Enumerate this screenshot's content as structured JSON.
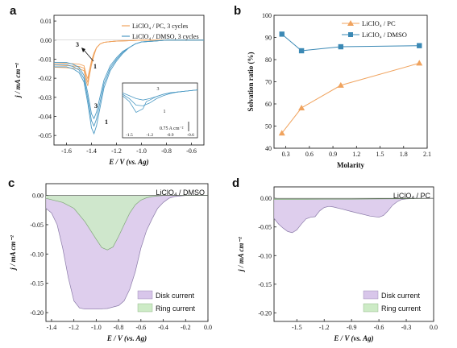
{
  "chart_data": [
    {
      "panel": "a",
      "type": "line",
      "xlabel": "E / V (vs. Ag)",
      "ylabel": "j / mA cm⁻²",
      "xlim": [
        -1.7,
        -0.5
      ],
      "ylim": [
        -0.055,
        0.013
      ],
      "xticks": [
        "-1.6",
        "-1.4",
        "-1.2",
        "-1.0",
        "-0.8",
        "-0.6"
      ],
      "yticks": [
        "0.01",
        "0.00",
        "-0.01",
        "-0.02",
        "-0.03",
        "-0.04",
        "-0.05"
      ],
      "colors": {
        "pc": "#f0a35e",
        "dmso": "#4c9ac4"
      },
      "legend": {
        "position": "top-right",
        "pc_label": "LiClO₄ / PC, 3 cycles",
        "dmso_label": "LiClO₄ / DMSO, 3 cycles"
      },
      "annotations": {
        "arrow_start": "3",
        "arrow_end": "1",
        "peak_top": "3",
        "peak_bottom": "1"
      },
      "series": [
        {
          "name": "LiClO₄ / PC, 3 cycles",
          "color": "#f0a35e",
          "x": [
            -0.5,
            -0.8,
            -1.0,
            -1.1,
            -1.2,
            -1.25,
            -1.3,
            -1.33,
            -1.36,
            -1.38,
            -1.4,
            -1.42,
            -1.43,
            -1.44,
            -1.46,
            -1.5,
            -1.6,
            -1.7
          ],
          "y": [
            0.0,
            0.0,
            0.0,
            -0.0003,
            -0.0005,
            -0.0008,
            -0.0012,
            -0.002,
            -0.004,
            -0.008,
            -0.013,
            -0.02,
            -0.024,
            -0.022,
            -0.016,
            -0.015,
            -0.0145,
            -0.0142
          ]
        },
        {
          "name": "LiClO₄ / DMSO, 3 cycles",
          "color": "#4c9ac4",
          "x": [
            -0.5,
            -0.8,
            -0.9,
            -1.0,
            -1.05,
            -1.1,
            -1.15,
            -1.2,
            -1.25,
            -1.3,
            -1.33,
            -1.36,
            -1.38,
            -1.4,
            -1.43,
            -1.46,
            -1.5,
            -1.55,
            -1.6,
            -1.65,
            -1.7
          ],
          "y": [
            0.0,
            0.0,
            -0.0005,
            -0.001,
            -0.002,
            -0.004,
            -0.007,
            -0.011,
            -0.016,
            -0.025,
            -0.035,
            -0.045,
            -0.049,
            -0.046,
            -0.033,
            -0.022,
            -0.017,
            -0.015,
            -0.014,
            -0.014,
            -0.014
          ]
        }
      ],
      "inset": {
        "xticks": [
          "-1.5",
          "-1.2",
          "-0.9",
          "-0.6"
        ],
        "scale_label": "0.75 A cm⁻²",
        "label_top": "3",
        "label_bottom": "1"
      }
    },
    {
      "panel": "b",
      "type": "line",
      "xlabel": "Molarity",
      "ylabel": "Solvation ratio (%)",
      "xlim": [
        0.15,
        2.1
      ],
      "ylim": [
        40,
        100
      ],
      "xticks": [
        "0.3",
        "0.6",
        "0.9",
        "1.2",
        "1.5",
        "1.8",
        "2.1"
      ],
      "yticks": [
        "40",
        "50",
        "60",
        "70",
        "80",
        "90",
        "100"
      ],
      "legend": {
        "position": "top-right"
      },
      "series": [
        {
          "name": "LiClO₄ / PC",
          "color": "#f0a35e",
          "marker": "triangle",
          "x": [
            0.25,
            0.5,
            1.0,
            2.0
          ],
          "y": [
            46.8,
            58.2,
            68.4,
            78.4
          ]
        },
        {
          "name": "LiClO₄ / DMSO",
          "color": "#3b89b5",
          "marker": "square",
          "x": [
            0.25,
            0.5,
            1.0,
            2.0
          ],
          "y": [
            91.5,
            84.0,
            85.8,
            86.3
          ]
        }
      ]
    },
    {
      "panel": "c",
      "type": "area",
      "title": "LiClO₄ / DMSO",
      "xlabel": "E / V (vs. Ag)",
      "ylabel": "j / mA cm⁻²",
      "xlim": [
        -1.45,
        0.0
      ],
      "ylim": [
        -0.215,
        0.02
      ],
      "xticks": [
        "-1.4",
        "-1.2",
        "-1.0",
        "-0.8",
        "-0.6",
        "-0.4",
        "-0.2",
        "0.0"
      ],
      "yticks": [
        "0.00",
        "-0.05",
        "-0.10",
        "-0.15",
        "-0.20"
      ],
      "legend": {
        "position": "bottom-right"
      },
      "series": [
        {
          "name": "Disk current",
          "fill": "#d8c6ea",
          "stroke": "#8a7aa8",
          "x": [
            -1.45,
            -1.4,
            -1.35,
            -1.3,
            -1.25,
            -1.2,
            -1.15,
            -1.1,
            -1.0,
            -0.9,
            -0.8,
            -0.75,
            -0.7,
            -0.65,
            -0.6,
            -0.55,
            -0.5,
            -0.45,
            -0.4,
            -0.35,
            -0.3,
            -0.2,
            -0.1,
            0.0
          ],
          "y": [
            -0.022,
            -0.03,
            -0.05,
            -0.09,
            -0.14,
            -0.18,
            -0.192,
            -0.194,
            -0.194,
            -0.193,
            -0.188,
            -0.18,
            -0.16,
            -0.13,
            -0.09,
            -0.06,
            -0.04,
            -0.022,
            -0.012,
            -0.005,
            -0.002,
            0.0,
            0.0,
            0.0
          ]
        },
        {
          "name": "Ring current",
          "fill": "#cdebc6",
          "stroke": "#7fa878",
          "x": [
            -1.45,
            -1.3,
            -1.2,
            -1.1,
            -1.0,
            -0.95,
            -0.9,
            -0.85,
            -0.8,
            -0.75,
            -0.7,
            -0.65,
            -0.6,
            -0.55,
            -0.5,
            -0.4,
            -0.3,
            0.0
          ],
          "y": [
            -0.005,
            -0.012,
            -0.022,
            -0.045,
            -0.075,
            -0.089,
            -0.093,
            -0.088,
            -0.07,
            -0.05,
            -0.03,
            -0.016,
            -0.008,
            -0.004,
            -0.002,
            0.0,
            0.0,
            0.0
          ]
        }
      ]
    },
    {
      "panel": "d",
      "type": "area",
      "title": "LiClO₄ / PC",
      "xlabel": "E / V (vs. Ag)",
      "ylabel": "j / mA cm⁻²",
      "xlim": [
        -1.75,
        0.0
      ],
      "ylim": [
        -0.215,
        0.02
      ],
      "xticks": [
        "-1.5",
        "-1.2",
        "-0.9",
        "-0.6",
        "-0.3",
        "0.0"
      ],
      "yticks": [
        "0.00",
        "-0.05",
        "-0.10",
        "-0.15",
        "-0.20"
      ],
      "legend": {
        "position": "bottom-right"
      },
      "series": [
        {
          "name": "Disk current",
          "fill": "#d8c6ea",
          "stroke": "#8a7aa8",
          "x": [
            -1.75,
            -1.7,
            -1.65,
            -1.6,
            -1.55,
            -1.5,
            -1.45,
            -1.4,
            -1.35,
            -1.3,
            -1.25,
            -1.2,
            -1.15,
            -1.1,
            -1.0,
            -0.9,
            -0.8,
            -0.7,
            -0.6,
            -0.55,
            -0.5,
            -0.45,
            -0.4,
            -0.35,
            -0.3,
            -0.2,
            0.0
          ],
          "y": [
            -0.035,
            -0.045,
            -0.052,
            -0.058,
            -0.06,
            -0.055,
            -0.045,
            -0.036,
            -0.033,
            -0.032,
            -0.022,
            -0.016,
            -0.014,
            -0.015,
            -0.019,
            -0.023,
            -0.027,
            -0.031,
            -0.033,
            -0.03,
            -0.022,
            -0.012,
            -0.006,
            -0.002,
            -0.001,
            0.0,
            0.0
          ]
        },
        {
          "name": "Ring current",
          "fill": "#cdebc6",
          "stroke": "#7fa878",
          "x": [
            -1.75,
            -1.5,
            -1.2,
            -0.9,
            -0.6,
            -0.3,
            0.0
          ],
          "y": [
            -0.002,
            -0.002,
            -0.0015,
            -0.0015,
            -0.001,
            -0.0005,
            0.0
          ]
        }
      ]
    }
  ]
}
